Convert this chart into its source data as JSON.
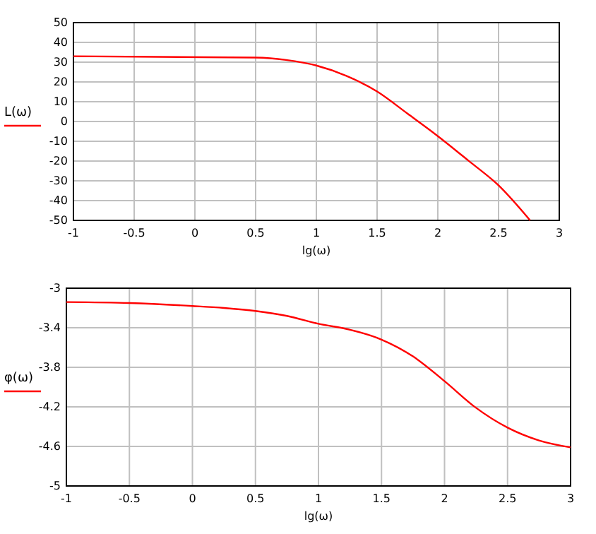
{
  "chart_data": [
    {
      "type": "line",
      "xlabel": "lg(ω)",
      "xlim": [
        -1,
        3
      ],
      "xticks": [
        -1,
        -0.5,
        0,
        0.5,
        1,
        1.5,
        2,
        2.5,
        3
      ],
      "ylim": [
        -50,
        50
      ],
      "yticks": [
        -50,
        -40,
        -30,
        -20,
        -10,
        0,
        10,
        20,
        30,
        40,
        50
      ],
      "grid": true,
      "legend": "left",
      "series": [
        {
          "name": "L(ω)",
          "color": "#ff0000",
          "x": [
            -1,
            0.5,
            0.75,
            1,
            1.25,
            1.5,
            1.75,
            2,
            2.25,
            2.5,
            2.76
          ],
          "values": [
            33,
            32.3,
            31.1,
            28.3,
            23,
            15.2,
            4,
            -7.4,
            -19.7,
            -32.3,
            -50
          ]
        }
      ]
    },
    {
      "type": "line",
      "xlabel": "lg(ω)",
      "xlim": [
        -1,
        3
      ],
      "xticks": [
        -1,
        -0.5,
        0,
        0.5,
        1,
        1.5,
        2,
        2.5,
        3
      ],
      "ylim": [
        -5,
        -3
      ],
      "yticks": [
        -5,
        -4.6,
        -4.2,
        -3.8,
        -3.4,
        -3
      ],
      "grid": true,
      "legend": "left",
      "series": [
        {
          "name": "φ(ω)",
          "color": "#ff0000",
          "x": [
            -1,
            -0.5,
            0,
            0.25,
            0.5,
            0.75,
            1,
            1.25,
            1.5,
            1.75,
            2,
            2.25,
            2.5,
            2.75,
            3
          ],
          "values": [
            -3.14,
            -3.15,
            -3.18,
            -3.2,
            -3.23,
            -3.28,
            -3.36,
            -3.42,
            -3.52,
            -3.69,
            -3.94,
            -4.21,
            -4.41,
            -4.54,
            -4.61
          ]
        }
      ]
    }
  ]
}
